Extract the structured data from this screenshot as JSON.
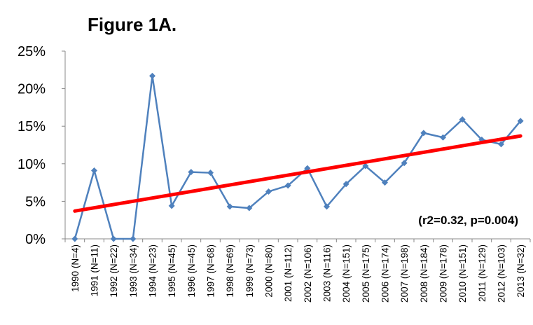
{
  "chart_data": {
    "type": "line",
    "title": "Figure 1A.",
    "categories": [
      "1990 (N=4)",
      "1991 (N=11)",
      "1992 (N=22)",
      "1993 (N=34)",
      "1994 (N=23)",
      "1995 (N=45)",
      "1996 (N=45)",
      "1997 (N=68)",
      "1998 (N=69)",
      "1999 (N=73)",
      "2000 (N=80)",
      "2001 (N=112)",
      "2002 (N=106)",
      "2003 (N=116)",
      "2004 (N=151)",
      "2005 (N=175)",
      "2006 (N=174)",
      "2007 (N=198)",
      "2008 (N=184)",
      "2009 (N=178)",
      "2010 (N=151)",
      "2011 (N=129)",
      "2012 (N=103)",
      "2013 (N=32)"
    ],
    "series": [
      {
        "color": "#4f81bd",
        "values": [
          0,
          9.1,
          0,
          0,
          21.7,
          4.4,
          8.9,
          8.8,
          4.3,
          4.1,
          6.3,
          7.1,
          9.4,
          4.3,
          7.3,
          9.7,
          7.5,
          10.1,
          14.1,
          13.5,
          15.9,
          13.2,
          12.6,
          15.7
        ]
      }
    ],
    "trendline": {
      "color": "#ff0000",
      "values": [
        3.7,
        13.7
      ]
    },
    "annotation": "(r2=0.32, p=0.004)",
    "ylim": [
      0,
      25
    ],
    "yticks": [
      {
        "value": 0,
        "label": "0%"
      },
      {
        "value": 5,
        "label": "5%"
      },
      {
        "value": 10,
        "label": "10%"
      },
      {
        "value": 15,
        "label": "15%"
      },
      {
        "value": 20,
        "label": "20%"
      },
      {
        "value": 25,
        "label": "25%"
      }
    ],
    "grid": false
  }
}
